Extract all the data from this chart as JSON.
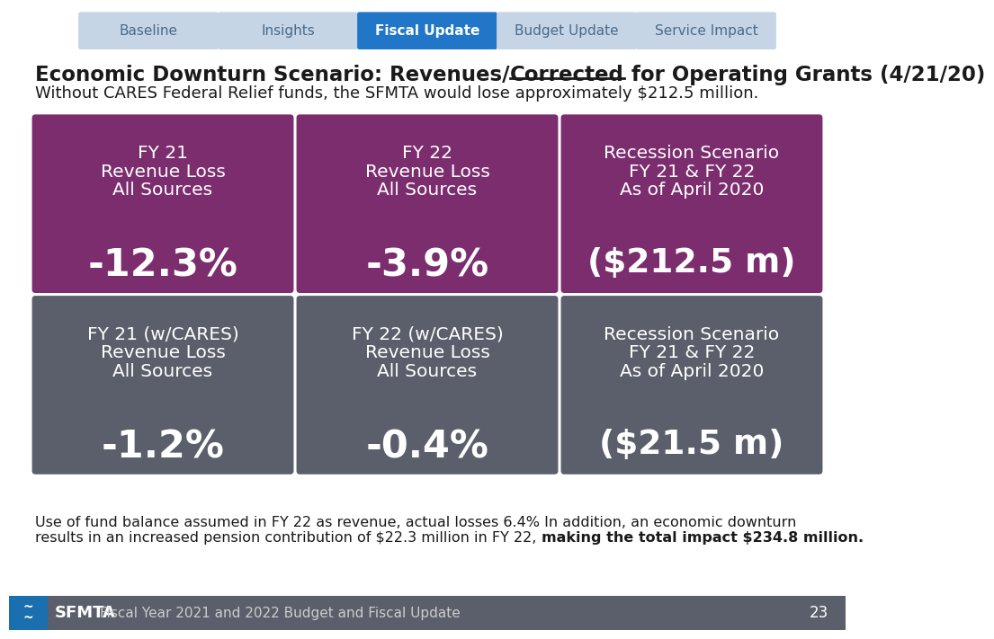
{
  "title_prefix": "Economic Downturn Scenario: Revenues/",
  "title_underline": "Corrected",
  "title_suffix": " for Operating Grants (4/21/20)",
  "subtitle": "Without CARES Federal Relief funds, the SFMTA would lose approximately $212.5 million.",
  "nav_tabs": [
    "Baseline",
    "Insights",
    "Fiscal Update",
    "Budget Update",
    "Service Impact"
  ],
  "nav_active_index": 2,
  "nav_bg": "#c5d5e5",
  "nav_active_bg": "#2176c7",
  "nav_text": "#4a6a8a",
  "nav_active_text": "#ffffff",
  "bg_color": "#ffffff",
  "footer_bg": "#5a5f6b",
  "footer_accent": "#1a6faf",
  "boxes_row1": [
    {
      "label_lines": [
        "FY 21",
        "Revenue Loss",
        "All Sources"
      ],
      "value": "-12.3%",
      "color": "#7b2d6e"
    },
    {
      "label_lines": [
        "FY 22",
        "Revenue Loss",
        "All Sources"
      ],
      "value": "-3.9%",
      "color": "#7b2d6e"
    },
    {
      "label_lines": [
        "Recession Scenario",
        "FY 21 & FY 22",
        "As of April 2020"
      ],
      "value": "($212.5 m)",
      "color": "#7b2d6e"
    }
  ],
  "boxes_row2": [
    {
      "label_lines": [
        "FY 21 (w/CARES)",
        "Revenue Loss",
        "All Sources"
      ],
      "value": "-1.2%",
      "color": "#5a5f6b"
    },
    {
      "label_lines": [
        "FY 22 (w/CARES)",
        "Revenue Loss",
        "All Sources"
      ],
      "value": "-0.4%",
      "color": "#5a5f6b"
    },
    {
      "label_lines": [
        "Recession Scenario",
        "FY 21 & FY 22",
        "As of April 2020"
      ],
      "value": "($21.5 m)",
      "color": "#5a5f6b"
    }
  ],
  "footnote_line1": "Use of fund balance assumed in FY 22 as revenue, actual losses 6.4% In addition, an economic downturn",
  "footnote_line2_normal": "results in an increased pension contribution of $22.3 million in FY 22, ",
  "footnote_line2_bold": "making the total impact $234.8 million.",
  "footer_logo_text": "SFMTA",
  "footer_subtitle": "Fiscal Year 2021 and 2022 Budget and Fiscal Update",
  "footer_page": "23"
}
